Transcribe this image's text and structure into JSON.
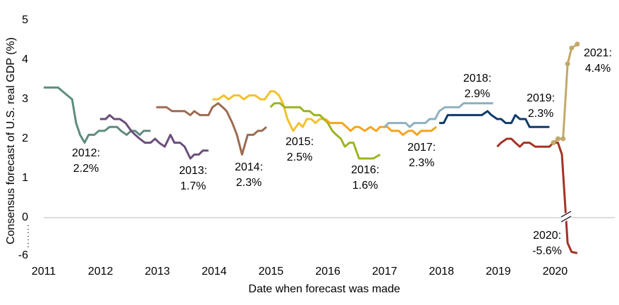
{
  "chart_data": {
    "type": "line",
    "y_label": "Consensus forecast of U.S. real GDP (%)",
    "x_label": "Date when forecast was made",
    "xlim": [
      2011,
      2021.05
    ],
    "xticks": [
      2011,
      2012,
      2013,
      2014,
      2015,
      2016,
      2017,
      2018,
      2019,
      2020
    ],
    "ylim": [
      -6,
      5
    ],
    "yticks": [
      -6,
      0,
      1,
      2,
      3,
      4,
      5
    ],
    "axis_break": true,
    "series": [
      {
        "label": [
          "2012:",
          "2.2%"
        ],
        "color": "#5e8c7e",
        "x": [
          2011.0,
          2011.25,
          2011.5,
          2011.57,
          2011.64,
          2011.72,
          2011.79,
          2011.89,
          2011.97,
          2012.07,
          2012.16,
          2012.29,
          2012.36,
          2012.46,
          2012.54,
          2012.61,
          2012.69,
          2012.76,
          2012.88
        ],
        "values": [
          3.3,
          3.3,
          3.0,
          2.4,
          2.1,
          1.9,
          2.1,
          2.1,
          2.2,
          2.2,
          2.3,
          2.3,
          2.2,
          2.1,
          2.2,
          2.2,
          2.1,
          2.2,
          2.2
        ]
      },
      {
        "label": [
          "2013:",
          "1.7%"
        ],
        "color": "#6b4e7b",
        "x": [
          2011.99,
          2012.09,
          2012.16,
          2012.24,
          2012.34,
          2012.44,
          2012.54,
          2012.61,
          2012.69,
          2012.78,
          2012.88,
          2012.96,
          2013.03,
          2013.13,
          2013.23,
          2013.3,
          2013.4,
          2013.48,
          2013.58,
          2013.65,
          2013.73,
          2013.8,
          2013.9
        ],
        "values": [
          2.5,
          2.5,
          2.6,
          2.5,
          2.5,
          2.4,
          2.2,
          2.1,
          2.0,
          1.9,
          1.9,
          2.0,
          1.9,
          1.8,
          2.1,
          1.9,
          1.9,
          1.8,
          1.5,
          1.6,
          1.6,
          1.7,
          1.7
        ]
      },
      {
        "label": [
          "2014:",
          "2.3%"
        ],
        "color": "#9c6b52",
        "x": [
          2012.98,
          2013.16,
          2013.26,
          2013.48,
          2013.58,
          2013.65,
          2013.75,
          2013.9,
          2013.97,
          2014.07,
          2014.15,
          2014.22,
          2014.32,
          2014.4,
          2014.49,
          2014.59,
          2014.69,
          2014.77,
          2014.84,
          2014.92
        ],
        "values": [
          2.8,
          2.8,
          2.7,
          2.7,
          2.6,
          2.7,
          2.6,
          2.6,
          2.8,
          2.9,
          2.8,
          2.7,
          2.4,
          2.1,
          1.6,
          2.1,
          2.1,
          2.2,
          2.2,
          2.3
        ]
      },
      {
        "label": [
          "2015:",
          "2.5%"
        ],
        "color": "#f2c12e",
        "x": [
          2013.97,
          2014.07,
          2014.17,
          2014.25,
          2014.35,
          2014.44,
          2014.52,
          2014.62,
          2014.72,
          2014.82,
          2014.89,
          2014.99,
          2015.06,
          2015.14,
          2015.21,
          2015.29,
          2015.39,
          2015.49,
          2015.56,
          2015.63,
          2015.71,
          2015.78,
          2015.86,
          2015.96
        ],
        "values": [
          3.0,
          3.0,
          3.1,
          3.0,
          3.1,
          3.1,
          3.0,
          3.1,
          3.1,
          3.0,
          3.0,
          3.2,
          3.2,
          3.1,
          2.9,
          2.5,
          2.2,
          2.4,
          2.3,
          2.5,
          2.5,
          2.4,
          2.5,
          2.5
        ]
      },
      {
        "label": [
          "2016:",
          "1.6%"
        ],
        "color": "#9bb51f",
        "x": [
          2014.99,
          2015.06,
          2015.16,
          2015.24,
          2015.44,
          2015.51,
          2015.58,
          2015.68,
          2015.76,
          2015.86,
          2015.93,
          2016.0,
          2016.08,
          2016.15,
          2016.23,
          2016.3,
          2016.38,
          2016.45,
          2016.55,
          2016.68,
          2016.8,
          2016.92
        ],
        "values": [
          2.8,
          2.9,
          2.9,
          2.8,
          2.8,
          2.8,
          2.7,
          2.7,
          2.6,
          2.6,
          2.5,
          2.4,
          2.2,
          2.1,
          2.0,
          1.8,
          1.9,
          1.9,
          1.5,
          1.5,
          1.5,
          1.6
        ]
      },
      {
        "label": [
          "2017:",
          "2.3%"
        ],
        "color": "#f4a31f",
        "x": [
          2015.96,
          2016.03,
          2016.25,
          2016.33,
          2016.4,
          2016.48,
          2016.55,
          2016.65,
          2016.75,
          2016.85,
          2016.92,
          2017.05,
          2017.12,
          2017.25,
          2017.32,
          2017.42,
          2017.49,
          2017.57,
          2017.64,
          2017.82,
          2017.91
        ],
        "values": [
          2.5,
          2.4,
          2.4,
          2.3,
          2.2,
          2.3,
          2.3,
          2.2,
          2.3,
          2.2,
          2.3,
          2.3,
          2.2,
          2.2,
          2.1,
          2.2,
          2.2,
          2.1,
          2.2,
          2.2,
          2.3
        ]
      },
      {
        "label": [
          "2018:",
          "2.9%"
        ],
        "color": "#8fb0c0",
        "x": [
          2017.0,
          2017.07,
          2017.37,
          2017.44,
          2017.52,
          2017.72,
          2017.79,
          2017.89,
          2017.96,
          2018.06,
          2018.31,
          2018.39,
          2018.91
        ],
        "values": [
          2.3,
          2.4,
          2.4,
          2.3,
          2.4,
          2.4,
          2.5,
          2.5,
          2.7,
          2.8,
          2.8,
          2.9,
          2.9
        ]
      },
      {
        "label": [
          "2019:",
          "2.3%"
        ],
        "color": "#0d3a6b",
        "x": [
          2017.96,
          2018.04,
          2018.11,
          2018.71,
          2018.81,
          2018.88,
          2018.98,
          2019.05,
          2019.13,
          2019.23,
          2019.3,
          2019.38,
          2019.48,
          2019.55,
          2019.9
        ],
        "values": [
          2.4,
          2.4,
          2.6,
          2.6,
          2.7,
          2.6,
          2.5,
          2.5,
          2.4,
          2.4,
          2.6,
          2.5,
          2.5,
          2.3,
          2.3
        ]
      },
      {
        "label": [
          "2020:",
          "-5.6%"
        ],
        "color": "#a33323",
        "x": [
          2018.98,
          2019.05,
          2019.15,
          2019.23,
          2019.3,
          2019.38,
          2019.45,
          2019.55,
          2019.65,
          2019.9,
          2019.97,
          2020.05,
          2020.12,
          2020.22,
          2020.29,
          2020.39
        ],
        "values": [
          1.8,
          1.9,
          2.0,
          2.0,
          1.9,
          1.8,
          1.9,
          1.9,
          1.8,
          1.8,
          1.9,
          1.9,
          1.6,
          -4.0,
          -5.4,
          -5.6
        ]
      },
      {
        "label": [
          "2021:",
          "4.4%"
        ],
        "color": "#c2a96a",
        "markers": true,
        "x": [
          2019.97,
          2020.05,
          2020.14,
          2020.22,
          2020.29,
          2020.39
        ],
        "values": [
          1.9,
          2.0,
          2.0,
          3.9,
          4.3,
          4.4
        ]
      }
    ]
  }
}
